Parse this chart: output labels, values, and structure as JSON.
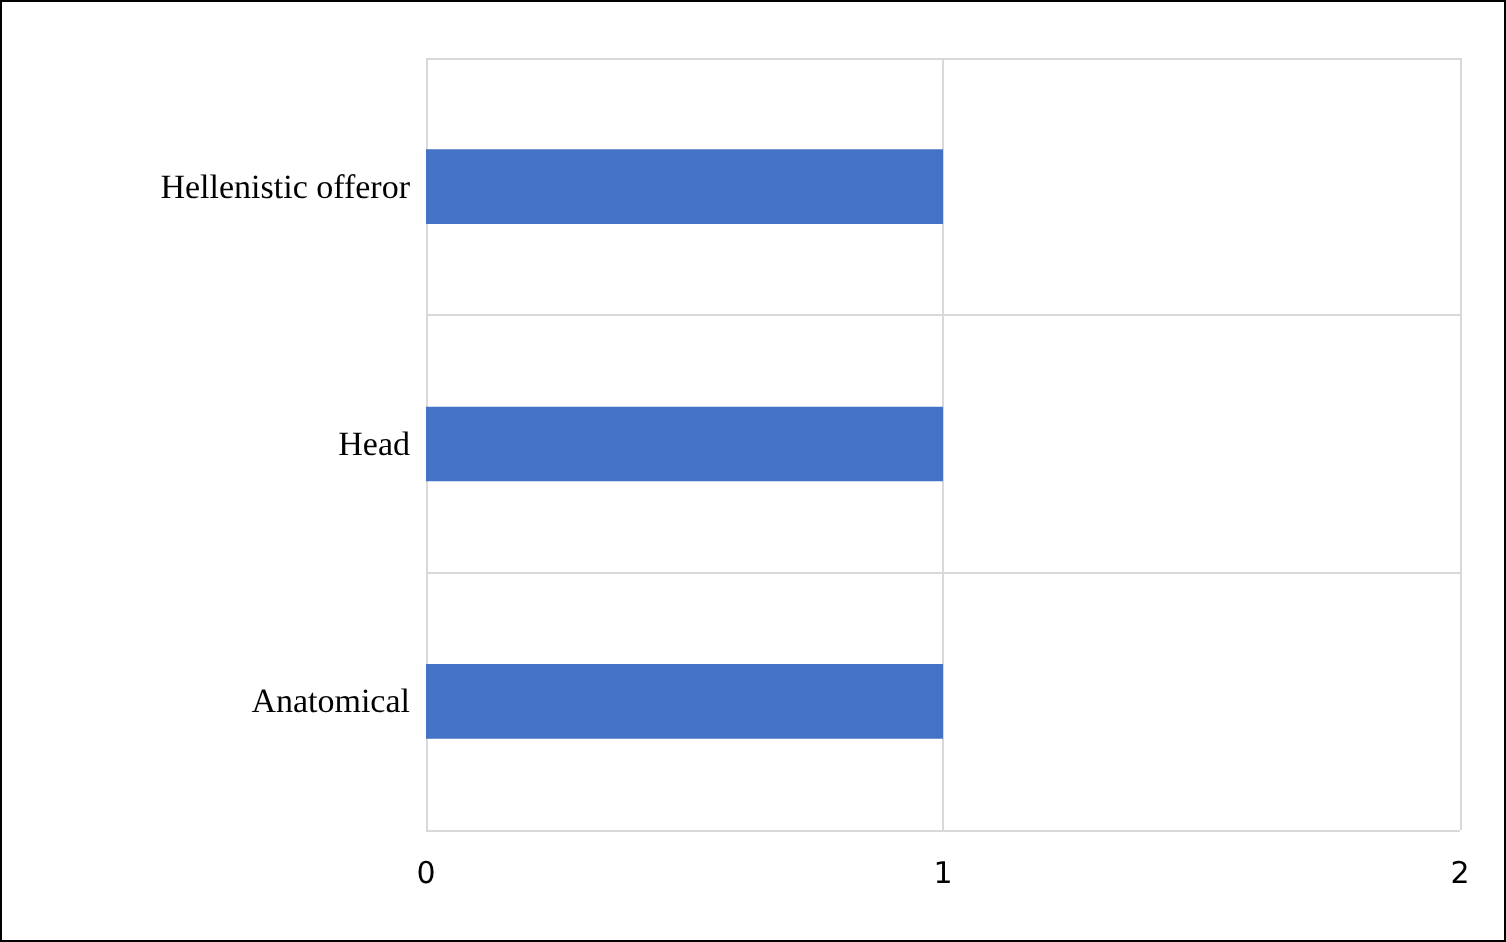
{
  "chart_data": {
    "type": "bar",
    "orientation": "horizontal",
    "categories": [
      "Hellenistic offeror",
      "Head",
      "Anatomical"
    ],
    "values": [
      1,
      1,
      1
    ],
    "color": "#4472c4",
    "xlim": [
      0,
      2
    ],
    "xticks": [
      0,
      1,
      2
    ],
    "grid": true
  }
}
